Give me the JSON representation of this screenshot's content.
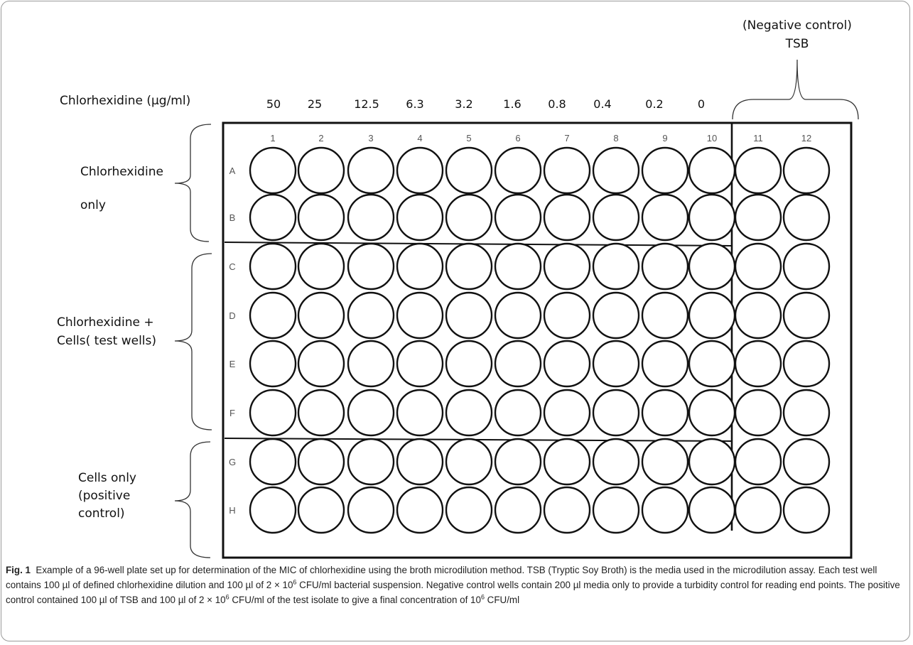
{
  "header": {
    "concentration_label": "Chlorhexidine (µg/ml)",
    "concentrations": [
      "50",
      "25",
      "12.5",
      "6.3",
      "3.2",
      "1.6",
      "0.8",
      "0.4",
      "0.2",
      "0"
    ],
    "negative_control_line1": "(Negative control)",
    "negative_control_line2": "TSB"
  },
  "plate": {
    "columns": [
      "1",
      "2",
      "3",
      "4",
      "5",
      "6",
      "7",
      "8",
      "9",
      "10",
      "11",
      "12"
    ],
    "rows": [
      "A",
      "B",
      "C",
      "D",
      "E",
      "F",
      "G",
      "H"
    ]
  },
  "groups": [
    {
      "lines": [
        "Chlorhexidine",
        "only"
      ]
    },
    {
      "lines": [
        "Chlorhexidine +",
        "Cells( test wells)"
      ]
    },
    {
      "lines": [
        "Cells only",
        "(positive",
        "control)"
      ]
    }
  ],
  "caption": {
    "fig_label": "Fig. 1",
    "text_a": "Example of a 96-well plate set up for determination of the MIC of chlorhexidine using the broth microdilution method. TSB (Tryptic Soy Broth) is the media used in the microdilution assay. Each test well contains 100 µl of defined chlorhexidine dilution and 100 µl of 2 × 10",
    "sup_a": "6",
    "text_b": " CFU/ml bacterial suspension. Negative control wells contain 200 µl media only to provide a turbidity control for reading end points. The positive control contained 100 µl of TSB and 100 µl of 2 × 10",
    "sup_b": "6",
    "text_c": " CFU/ml of the test isolate to give a final concentration of 10",
    "sup_c": "6",
    "text_d": " CFU/ml"
  }
}
